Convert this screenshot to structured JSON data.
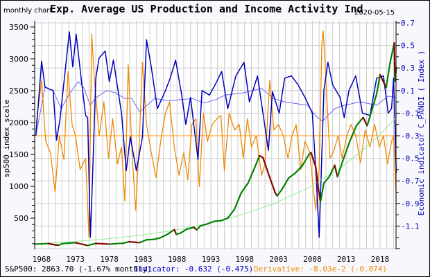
{
  "header": {
    "frequency_label": "monthly chart",
    "title": "Exp. Average US Production and Income Activity Ind",
    "date": "2020-05-15"
  },
  "footer": {
    "sp500": "S&P500: 2863.70 (-1.67% monthly)",
    "indicator": "Indicator: -0.632 (-0.475)",
    "derivative": "Derivative: -8.03e-2 (-0.074)"
  },
  "colors": {
    "background": "#f8f8fc",
    "plot_background": "#ffffff",
    "grid": "#cccccc",
    "indicator": "#0000bb",
    "indicator_average": "#6666ff",
    "derivative": "#ee8800",
    "derivative_zero_line": "#ffaa33",
    "sp500_up": "#008000",
    "sp500_down": "#880000",
    "trend": "#90ee90",
    "right_axis_text": "#0000bb",
    "footer_indicator": "#0000cc",
    "footer_derivative": "#ee8800"
  },
  "chart_data": {
    "type": "line",
    "title": "Exp. Average US Production and Income Activity Ind",
    "grid": true,
    "x_range": [
      1966.98,
      2020.5
    ],
    "x_ticks": [
      "1968",
      "1973",
      "1978",
      "1983",
      "1988",
      "1993",
      "1998",
      "2003",
      "2008",
      "2013",
      "2018"
    ],
    "left_axis": {
      "label": "sp500 index scale",
      "range": [
        0,
        3530
      ],
      "ticks": [
        "500",
        "1000",
        "1500",
        "2000",
        "2500",
        "3000",
        "3500"
      ]
    },
    "right_axis": {
      "label": "Economic indicator C_PANDI ( Index )",
      "range": [
        -1.3,
        0.72
      ],
      "ticks": [
        "0.7",
        "0.5",
        "0.3",
        "0.1",
        "-0.1",
        "-0.3",
        "-0.5",
        "-0.7",
        "-0.9",
        "-1.1"
      ]
    },
    "derivative_reference_level": -0.3,
    "series": [
      {
        "key": "sp500",
        "axis": "left",
        "x": [
          1967,
          1968,
          1969,
          1970,
          1970.5,
          1971,
          1972,
          1973,
          1974,
          1974.8,
          1975.5,
          1976,
          1977,
          1978,
          1979,
          1980,
          1980.9,
          1981.5,
          1982.5,
          1983.5,
          1984.5,
          1985.5,
          1986.5,
          1987.6,
          1987.9,
          1988.5,
          1989.5,
          1990.5,
          1990.9,
          1991.5,
          1992.5,
          1993.5,
          1994.5,
          1995.5,
          1996.5,
          1997.5,
          1998.5,
          1999.5,
          2000.2,
          2000.7,
          2001.5,
          2002.5,
          2002.8,
          2003.5,
          2004.5,
          2005.5,
          2006.5,
          2007.5,
          2007.8,
          2008.5,
          2008.9,
          2009.2,
          2009.7,
          2010.5,
          2011.3,
          2011.7,
          2012.5,
          2013.5,
          2014.5,
          2015.5,
          2016.1,
          2016.8,
          2017.5,
          2018.0,
          2018.9,
          2019.5,
          2020.1,
          2020.2,
          2020.4
        ],
        "y": [
          92,
          96,
          102,
          80,
          75,
          98,
          108,
          115,
          90,
          70,
          90,
          102,
          98,
          92,
          100,
          105,
          130,
          125,
          115,
          160,
          165,
          190,
          240,
          320,
          245,
          265,
          330,
          355,
          315,
          380,
          410,
          450,
          460,
          500,
          640,
          900,
          1050,
          1300,
          1480,
          1450,
          1200,
          900,
          850,
          950,
          1130,
          1210,
          1320,
          1500,
          1530,
          1300,
          950,
          760,
          1050,
          1150,
          1330,
          1150,
          1400,
          1700,
          1950,
          2080,
          1950,
          2200,
          2450,
          2750,
          2550,
          2950,
          3250,
          2650,
          2864
        ]
      },
      {
        "key": "trend",
        "axis": "left",
        "x": [
          1967,
          1972,
          1977,
          1982,
          1987,
          1992,
          1997,
          2002,
          2007,
          2012,
          2017,
          2020.4
        ],
        "y": [
          94,
          126,
          168,
          224,
          299,
          400,
          535,
          714,
          954,
          1275,
          1703,
          2080
        ]
      },
      {
        "key": "indicator",
        "name": "Indicator",
        "axis": "right",
        "x": [
          1967.15,
          1968.0,
          1968.5,
          1969.7,
          1970.2,
          1970.7,
          1972.1,
          1972.6,
          1973.1,
          1973.8,
          1974.5,
          1974.8,
          1975.2,
          1975.5,
          1976.0,
          1976.5,
          1977.4,
          1978.0,
          1978.6,
          1979.8,
          1980.5,
          1981.1,
          1982.0,
          1982.9,
          1983.5,
          1984.2,
          1985.1,
          1986.3,
          1987.0,
          1987.8,
          1988.7,
          1989.3,
          1990.0,
          1991.1,
          1991.7,
          1992.8,
          1993.8,
          1994.6,
          1995.5,
          1996.7,
          1997.9,
          1998.7,
          1999.9,
          2000.8,
          2001.5,
          2002.1,
          2003.1,
          2003.9,
          2004.9,
          2005.9,
          2006.9,
          2008.0,
          2008.6,
          2009.0,
          2009.7,
          2010.3,
          2011.0,
          2012.1,
          2012.7,
          2013.4,
          2014.4,
          2015.4,
          2016.5,
          2017.5,
          2018.5,
          2019.2,
          2019.7,
          2020.0,
          2020.4
        ],
        "y": [
          -0.3,
          0.36,
          0.13,
          0.1,
          -0.34,
          -0.16,
          0.62,
          0.31,
          0.6,
          0.23,
          -0.12,
          -0.14,
          -1.2,
          -0.71,
          0.21,
          0.39,
          0.45,
          0.18,
          0.37,
          -0.1,
          -0.61,
          -0.31,
          -0.61,
          -0.31,
          0.55,
          0.31,
          -0.06,
          0.1,
          0.21,
          0.37,
          0.06,
          -0.2,
          0.04,
          -0.51,
          0.1,
          0.06,
          0.17,
          0.27,
          -0.06,
          0.23,
          0.35,
          0.0,
          0.23,
          -0.14,
          -0.43,
          0.09,
          -0.1,
          0.21,
          0.23,
          0.15,
          0.04,
          -0.1,
          -0.71,
          -1.2,
          0.1,
          0.35,
          0.15,
          0.04,
          -0.14,
          0.1,
          0.23,
          -0.1,
          -0.12,
          0.21,
          0.23,
          -0.1,
          -0.06,
          0.21,
          -0.632
        ]
      },
      {
        "key": "indicator_average",
        "axis": "right",
        "x": [
          1967.15,
          1968.5,
          1969.7,
          1970.9,
          1972.2,
          1973.4,
          1974.2,
          1975.2,
          1975.9,
          1977.6,
          1978.9,
          1980.3,
          1981.3,
          1982.5,
          1984.7,
          1986.9,
          1990.3,
          1992.0,
          1993.8,
          1995.1,
          1997.8,
          2000.5,
          2002.2,
          2003.9,
          2007.3,
          2008.6,
          2009.5,
          2011.3,
          2012.7,
          2015.1,
          2017.5,
          2019.2,
          2020.4
        ],
        "y": [
          -0.3,
          0.13,
          0.1,
          -0.06,
          0.08,
          0.18,
          0.13,
          -0.03,
          0.03,
          0.1,
          0.08,
          0.03,
          0.03,
          -0.09,
          0.03,
          0.01,
          0.03,
          -0.01,
          0.02,
          0.06,
          0.08,
          0.12,
          0.03,
          0.0,
          -0.03,
          -0.13,
          -0.17,
          -0.06,
          -0.03,
          0.0,
          -0.03,
          0.05,
          0.04
        ]
      },
      {
        "key": "derivative",
        "name": "Derivative",
        "axis": "right",
        "x": [
          1967.2,
          1968.0,
          1968.6,
          1969.3,
          1970.0,
          1970.6,
          1971.3,
          1971.9,
          1972.5,
          1973.0,
          1973.7,
          1974.5,
          1975.0,
          1975.4,
          1975.8,
          1976.5,
          1977.2,
          1977.9,
          1978.5,
          1979.2,
          1979.8,
          1980.3,
          1980.8,
          1981.4,
          1981.9,
          1982.4,
          1982.9,
          1983.5,
          1984.2,
          1984.9,
          1985.7,
          1986.3,
          1986.9,
          1987.6,
          1988.3,
          1989.0,
          1989.6,
          1990.2,
          1990.8,
          1991.3,
          1991.9,
          1992.5,
          1993.2,
          1993.9,
          1994.5,
          1995.0,
          1995.7,
          1996.5,
          1997.2,
          1997.8,
          1998.4,
          1999.0,
          1999.7,
          2000.5,
          2001.0,
          2001.7,
          2002.3,
          2003.0,
          2003.7,
          2004.4,
          2005.0,
          2005.6,
          2006.3,
          2006.9,
          2007.6,
          2008.1,
          2008.5,
          2009.0,
          2009.4,
          2009.6,
          2010.0,
          2010.6,
          2011.2,
          2011.8,
          2012.4,
          2013.1,
          2013.7,
          2014.4,
          2015.1,
          2015.8,
          2016.5,
          2017.2,
          2017.9,
          2018.5,
          2019.1,
          2019.7,
          2020.0,
          2020.4
        ],
        "y": [
          -0.19,
          0.19,
          -0.35,
          -0.45,
          -0.8,
          -0.3,
          -0.51,
          0.27,
          -0.2,
          -0.3,
          -0.6,
          -0.5,
          -1.2,
          0.6,
          0.2,
          -0.3,
          0.0,
          -0.5,
          -0.15,
          -0.55,
          -0.4,
          -0.88,
          0.33,
          -0.5,
          -0.96,
          -0.4,
          0.35,
          -0.2,
          -0.45,
          -0.67,
          -0.3,
          -0.1,
          0.0,
          -0.4,
          -0.65,
          -0.45,
          -0.69,
          -0.2,
          -0.15,
          -0.75,
          -0.1,
          -0.35,
          -0.2,
          -0.15,
          -0.12,
          -0.61,
          -0.1,
          -0.25,
          -0.2,
          -0.5,
          -0.15,
          -0.4,
          -0.3,
          -0.65,
          -0.55,
          0.19,
          -0.25,
          -0.2,
          -0.3,
          -0.5,
          -0.3,
          -0.2,
          -0.6,
          -0.35,
          -0.45,
          -0.75,
          -0.96,
          -0.6,
          0.52,
          0.63,
          0.2,
          -0.5,
          -0.43,
          -0.3,
          -0.5,
          -0.3,
          -0.2,
          -0.3,
          -0.54,
          -0.25,
          -0.4,
          -0.2,
          -0.4,
          -0.3,
          -0.55,
          -0.35,
          -0.3,
          -0.88
        ]
      }
    ]
  }
}
